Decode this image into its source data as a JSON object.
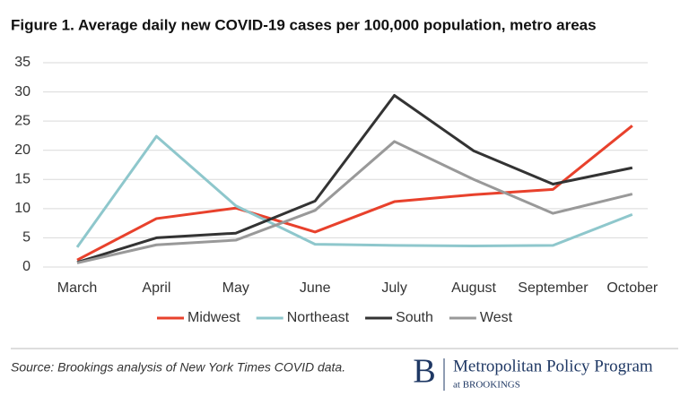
{
  "chart_data": {
    "type": "line",
    "title": "Figure 1. Average daily new COVID-19 cases per 100,000 population, metro areas",
    "categories": [
      "March",
      "April",
      "May",
      "June",
      "July",
      "August",
      "September",
      "October"
    ],
    "series": [
      {
        "name": "Midwest",
        "color": "#e8412c",
        "values": [
          1.2,
          8.3,
          10.1,
          6.0,
          11.2,
          12.4,
          13.3,
          24.2
        ]
      },
      {
        "name": "Northeast",
        "color": "#8ec7cc",
        "values": [
          3.4,
          22.4,
          10.5,
          3.9,
          3.7,
          3.6,
          3.7,
          9.0
        ]
      },
      {
        "name": "South",
        "color": "#333333",
        "values": [
          0.8,
          5.0,
          5.8,
          11.3,
          29.4,
          19.9,
          14.2,
          17.0
        ]
      },
      {
        "name": "West",
        "color": "#999999",
        "values": [
          0.7,
          3.8,
          4.6,
          9.7,
          21.5,
          15.0,
          9.2,
          12.5
        ]
      }
    ],
    "ylim": [
      0,
      35
    ],
    "yticks": [
      0,
      5,
      10,
      15,
      20,
      25,
      30,
      35
    ],
    "grid": true,
    "legend": "bottom",
    "source": "Source: Brookings analysis of New York Times COVID data.",
    "logo": {
      "letter": "B",
      "name": "Metropolitan Policy Program",
      "sub": "at BROOKINGS"
    }
  }
}
